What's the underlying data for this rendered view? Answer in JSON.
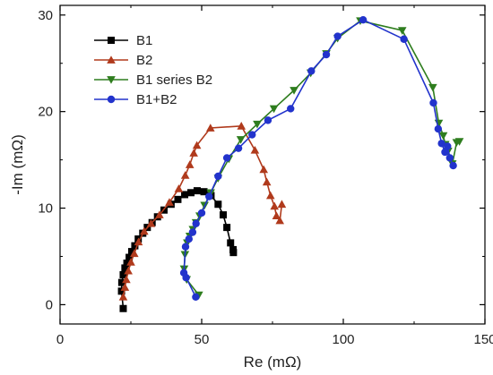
{
  "chart_data": {
    "type": "scatter",
    "xlabel": "Re (mΩ)",
    "ylabel": "-Im (mΩ)",
    "xlim": [
      0,
      150
    ],
    "ylim": [
      -2,
      31
    ],
    "xticks": [
      0,
      50,
      100,
      150
    ],
    "yticks": [
      0,
      10,
      20,
      30
    ],
    "grid": false,
    "legend": "top-left",
    "series": [
      {
        "name": "B1",
        "color": "#000000",
        "marker": "square",
        "points": [
          [
            22.3,
            -0.4
          ],
          [
            21.7,
            1.4
          ],
          [
            21.8,
            2.3
          ],
          [
            22.3,
            3.1
          ],
          [
            22.9,
            3.8
          ],
          [
            23.6,
            4.3
          ],
          [
            24.4,
            4.9
          ],
          [
            25.3,
            5.5
          ],
          [
            26.4,
            6.1
          ],
          [
            27.6,
            6.8
          ],
          [
            29.2,
            7.4
          ],
          [
            30.8,
            8.0
          ],
          [
            32.5,
            8.5
          ],
          [
            34.4,
            9.1
          ],
          [
            36.7,
            9.8
          ],
          [
            39.2,
            10.4
          ],
          [
            41.6,
            10.9
          ],
          [
            44.0,
            11.4
          ],
          [
            46.2,
            11.6
          ],
          [
            48.4,
            11.8
          ],
          [
            50.8,
            11.7
          ],
          [
            53.3,
            11.3
          ],
          [
            55.8,
            10.4
          ],
          [
            57.6,
            9.3
          ],
          [
            58.9,
            8.0
          ],
          [
            60.2,
            6.4
          ],
          [
            61.1,
            5.7
          ],
          [
            61.2,
            5.4
          ]
        ]
      },
      {
        "name": "B2",
        "color": "#b03a1c",
        "marker": "triangle-up",
        "points": [
          [
            22.3,
            0.8
          ],
          [
            22.9,
            1.8
          ],
          [
            23.4,
            2.6
          ],
          [
            24.1,
            3.5
          ],
          [
            25.0,
            4.4
          ],
          [
            26.2,
            5.3
          ],
          [
            27.7,
            6.5
          ],
          [
            29.7,
            7.6
          ],
          [
            32.1,
            8.4
          ],
          [
            35.1,
            9.3
          ],
          [
            38.6,
            10.6
          ],
          [
            41.9,
            12.0
          ],
          [
            44.2,
            13.4
          ],
          [
            45.8,
            14.5
          ],
          [
            47.2,
            15.7
          ],
          [
            48.3,
            16.5
          ],
          [
            53.1,
            18.3
          ],
          [
            64.0,
            18.5
          ],
          [
            68.8,
            16.0
          ],
          [
            71.9,
            14.0
          ],
          [
            73.0,
            12.7
          ],
          [
            74.3,
            11.3
          ],
          [
            75.7,
            10.2
          ],
          [
            76.4,
            9.2
          ],
          [
            77.6,
            8.7
          ],
          [
            78.3,
            10.4
          ]
        ]
      },
      {
        "name": "B1 series B2",
        "color": "#2e7d1e",
        "marker": "triangle-down",
        "points": [
          [
            49.0,
            1.0
          ],
          [
            44.7,
            2.6
          ],
          [
            43.8,
            3.7
          ],
          [
            44.1,
            5.2
          ],
          [
            44.9,
            6.4
          ],
          [
            45.8,
            7.1
          ],
          [
            46.9,
            7.8
          ],
          [
            48.0,
            8.5
          ],
          [
            49.3,
            9.2
          ],
          [
            51.0,
            10.3
          ],
          [
            53.2,
            11.6
          ],
          [
            55.8,
            13.1
          ],
          [
            59.6,
            15.1
          ],
          [
            63.8,
            17.1
          ],
          [
            69.6,
            18.7
          ],
          [
            75.5,
            20.3
          ],
          [
            82.6,
            22.2
          ],
          [
            88.5,
            24.0
          ],
          [
            94.0,
            26.0
          ],
          [
            98.0,
            27.6
          ],
          [
            106.0,
            29.4
          ],
          [
            120.8,
            28.4
          ],
          [
            131.6,
            22.5
          ],
          [
            133.7,
            18.8
          ],
          [
            135.3,
            17.5
          ],
          [
            136.0,
            16.6
          ],
          [
            137.0,
            15.9
          ],
          [
            138.5,
            14.6
          ],
          [
            140.0,
            16.8
          ],
          [
            141.0,
            16.9
          ]
        ]
      },
      {
        "name": "B1+B2",
        "color": "#2233cc",
        "marker": "circle",
        "points": [
          [
            47.9,
            0.8
          ],
          [
            44.5,
            2.8
          ],
          [
            43.7,
            3.3
          ],
          [
            44.3,
            6.0
          ],
          [
            45.5,
            6.8
          ],
          [
            46.8,
            7.5
          ],
          [
            48.0,
            8.4
          ],
          [
            50.0,
            9.5
          ],
          [
            52.6,
            11.2
          ],
          [
            55.8,
            13.3
          ],
          [
            58.9,
            15.2
          ],
          [
            63.0,
            16.2
          ],
          [
            67.8,
            17.6
          ],
          [
            73.4,
            19.1
          ],
          [
            81.4,
            20.3
          ],
          [
            88.7,
            24.2
          ],
          [
            94.0,
            25.9
          ],
          [
            98.0,
            27.8
          ],
          [
            107.0,
            29.5
          ],
          [
            121.4,
            27.5
          ],
          [
            131.8,
            20.9
          ],
          [
            133.5,
            18.2
          ],
          [
            134.7,
            16.7
          ],
          [
            135.9,
            15.8
          ],
          [
            136.8,
            16.4
          ],
          [
            137.6,
            15.2
          ],
          [
            138.8,
            14.4
          ]
        ]
      }
    ]
  }
}
